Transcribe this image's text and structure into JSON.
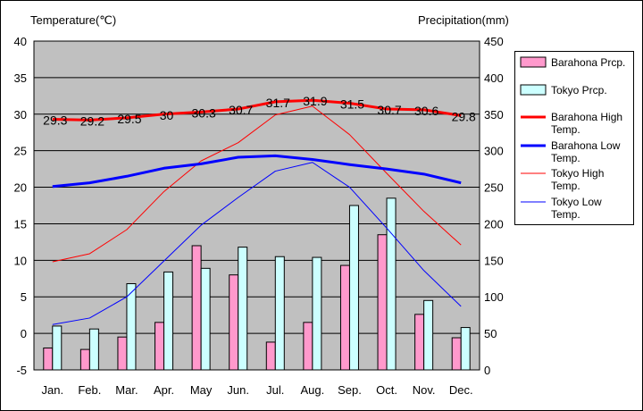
{
  "chart_data": {
    "type": "bar",
    "left_axis_title": "Temperature(℃)",
    "right_axis_title": "Precipitation(mm)",
    "categories": [
      "Jan.",
      "Feb.",
      "Mar.",
      "Apr.",
      "May",
      "Jun.",
      "Jul.",
      "Aug.",
      "Sep.",
      "Oct.",
      "Nov.",
      "Dec."
    ],
    "y_left": {
      "min": -5,
      "max": 40,
      "step": 5,
      "ticks": [
        "-5",
        "0",
        "5",
        "10",
        "15",
        "20",
        "25",
        "30",
        "35",
        "40"
      ]
    },
    "y_right": {
      "min": 0,
      "max": 450,
      "step": 50,
      "ticks": [
        "0",
        "50",
        "100",
        "150",
        "200",
        "250",
        "300",
        "350",
        "400",
        "450"
      ]
    },
    "grid": true,
    "plot_background": "#c0c0c0",
    "legend_position": "right",
    "bar_series": [
      {
        "name": "Barahona Prcp.",
        "axis": "right",
        "color": "#ff99cc",
        "values": [
          30,
          28,
          45,
          65,
          170,
          130,
          38,
          65,
          143,
          185,
          76,
          44
        ]
      },
      {
        "name": "Tokyo Prcp.",
        "axis": "right",
        "color": "#ccffff",
        "values": [
          60,
          56,
          118,
          134,
          139,
          168,
          155,
          154,
          225,
          235,
          95,
          58
        ]
      }
    ],
    "line_series": [
      {
        "name": "Barahona High Temp.",
        "axis": "left",
        "color": "#ff0000",
        "width": 3,
        "values": [
          29.3,
          29.2,
          29.5,
          30.0,
          30.3,
          30.7,
          31.7,
          31.9,
          31.5,
          30.7,
          30.6,
          29.8
        ],
        "labels": [
          "29.3",
          "29.2",
          "29.5",
          "30",
          "30.3",
          "30.7",
          "31.7",
          "31.9",
          "31.5",
          "30.7",
          "30.6",
          "29.8"
        ]
      },
      {
        "name": "Barahona Low Temp.",
        "axis": "left",
        "color": "#0000ff",
        "width": 3,
        "values": [
          20.1,
          20.6,
          21.5,
          22.6,
          23.2,
          24.1,
          24.3,
          23.8,
          23.1,
          22.5,
          21.8,
          20.6
        ]
      },
      {
        "name": "Tokyo High Temp.",
        "axis": "left",
        "color": "#ff0000",
        "width": 1,
        "values": [
          9.8,
          10.9,
          14.2,
          19.4,
          23.6,
          26.1,
          29.9,
          31.1,
          27.2,
          21.9,
          16.7,
          12.1
        ]
      },
      {
        "name": "Tokyo Low Temp.",
        "axis": "left",
        "color": "#0000ff",
        "width": 1,
        "values": [
          1.2,
          2.1,
          5.0,
          9.9,
          14.8,
          18.6,
          22.2,
          23.4,
          20.0,
          14.4,
          8.6,
          3.7
        ]
      }
    ]
  }
}
